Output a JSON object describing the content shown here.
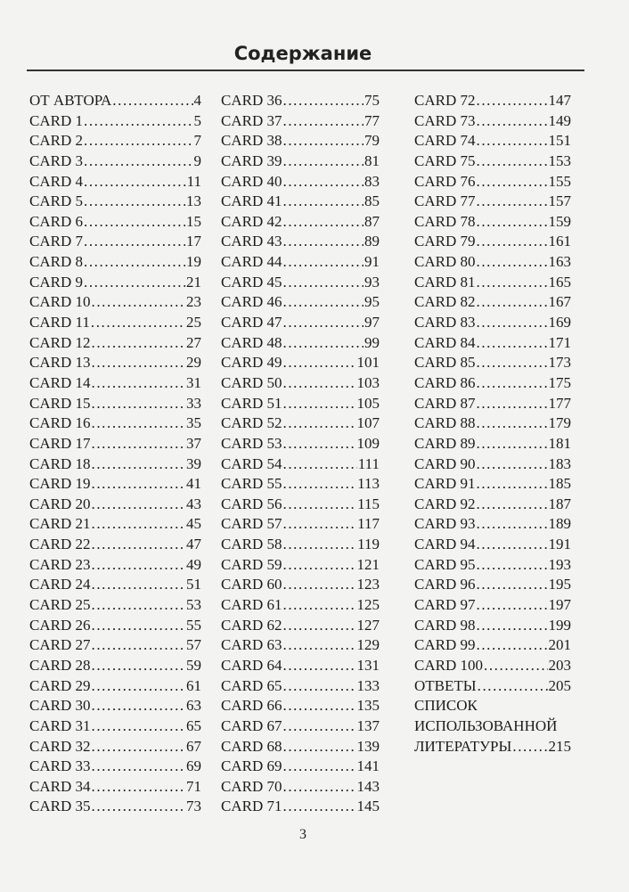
{
  "title": "Содержание",
  "page_number": "3",
  "columns": [
    [
      {
        "label": "ОТ АВТОРА",
        "page": "4"
      },
      {
        "label": "CARD 1",
        "page": "5"
      },
      {
        "label": "CARD 2",
        "page": "7"
      },
      {
        "label": "CARD 3",
        "page": "9"
      },
      {
        "label": "CARD 4",
        "page": "11"
      },
      {
        "label": "CARD 5",
        "page": "13"
      },
      {
        "label": "CARD 6",
        "page": "15"
      },
      {
        "label": "CARD 7",
        "page": "17"
      },
      {
        "label": "CARD 8",
        "page": "19"
      },
      {
        "label": "CARD 9",
        "page": "21"
      },
      {
        "label": "CARD 10",
        "page": "23"
      },
      {
        "label": "CARD 11",
        "page": "25"
      },
      {
        "label": "CARD 12",
        "page": "27"
      },
      {
        "label": "CARD 13",
        "page": "29"
      },
      {
        "label": "CARD 14",
        "page": "31"
      },
      {
        "label": "CARD 15",
        "page": "33"
      },
      {
        "label": "CARD 16",
        "page": "35"
      },
      {
        "label": "CARD 17",
        "page": "37"
      },
      {
        "label": "CARD 18",
        "page": "39"
      },
      {
        "label": "CARD 19",
        "page": "41"
      },
      {
        "label": "CARD 20",
        "page": "43"
      },
      {
        "label": "CARD 21",
        "page": "45"
      },
      {
        "label": "CARD 22",
        "page": "47"
      },
      {
        "label": "CARD 23",
        "page": "49"
      },
      {
        "label": "CARD 24",
        "page": "51"
      },
      {
        "label": "CARD 25",
        "page": "53"
      },
      {
        "label": "CARD 26",
        "page": "55"
      },
      {
        "label": "CARD 27",
        "page": "57"
      },
      {
        "label": "CARD 28",
        "page": "59"
      },
      {
        "label": "CARD 29",
        "page": "61"
      },
      {
        "label": "CARD 30",
        "page": "63"
      },
      {
        "label": "CARD 31",
        "page": "65"
      },
      {
        "label": "CARD 32",
        "page": "67"
      },
      {
        "label": "CARD 33",
        "page": "69"
      },
      {
        "label": "CARD 34",
        "page": "71"
      },
      {
        "label": "CARD 35",
        "page": "73"
      }
    ],
    [
      {
        "label": "CARD 36",
        "page": "75"
      },
      {
        "label": "CARD 37",
        "page": "77"
      },
      {
        "label": "CARD 38",
        "page": "79"
      },
      {
        "label": "CARD 39",
        "page": "81"
      },
      {
        "label": "CARD 40",
        "page": "83"
      },
      {
        "label": "CARD 41",
        "page": "85"
      },
      {
        "label": "CARD 42",
        "page": "87"
      },
      {
        "label": "CARD 43",
        "page": "89"
      },
      {
        "label": "CARD 44",
        "page": "91"
      },
      {
        "label": "CARD 45",
        "page": "93"
      },
      {
        "label": "CARD 46",
        "page": "95"
      },
      {
        "label": "CARD 47",
        "page": "97"
      },
      {
        "label": "CARD 48",
        "page": "99"
      },
      {
        "label": "CARD 49",
        "page": "101"
      },
      {
        "label": "CARD 50",
        "page": "103"
      },
      {
        "label": "CARD 51",
        "page": "105"
      },
      {
        "label": "CARD 52",
        "page": "107"
      },
      {
        "label": "CARD 53",
        "page": "109"
      },
      {
        "label": "CARD 54",
        "page": "111"
      },
      {
        "label": "CARD 55",
        "page": "113"
      },
      {
        "label": "CARD 56",
        "page": "115"
      },
      {
        "label": "CARD 57",
        "page": "117"
      },
      {
        "label": "CARD 58",
        "page": "119"
      },
      {
        "label": "CARD 59",
        "page": "121"
      },
      {
        "label": "CARD 60",
        "page": "123"
      },
      {
        "label": "CARD 61",
        "page": "125"
      },
      {
        "label": "CARD 62",
        "page": "127"
      },
      {
        "label": "CARD 63",
        "page": "129"
      },
      {
        "label": "CARD 64",
        "page": "131"
      },
      {
        "label": "CARD 65",
        "page": "133"
      },
      {
        "label": "CARD 66",
        "page": "135"
      },
      {
        "label": "CARD 67",
        "page": "137"
      },
      {
        "label": "CARD 68",
        "page": "139"
      },
      {
        "label": "CARD 69",
        "page": "141"
      },
      {
        "label": "CARD 70",
        "page": "143"
      },
      {
        "label": "CARD 71",
        "page": "145"
      }
    ],
    [
      {
        "label": "CARD 72",
        "page": "147"
      },
      {
        "label": "CARD 73",
        "page": "149"
      },
      {
        "label": "CARD 74",
        "page": "151"
      },
      {
        "label": "CARD 75",
        "page": "153"
      },
      {
        "label": "CARD 76",
        "page": "155"
      },
      {
        "label": "CARD 77",
        "page": "157"
      },
      {
        "label": "CARD 78",
        "page": "159"
      },
      {
        "label": "CARD 79",
        "page": "161"
      },
      {
        "label": "CARD 80",
        "page": "163"
      },
      {
        "label": "CARD 81",
        "page": "165"
      },
      {
        "label": "CARD 82",
        "page": "167"
      },
      {
        "label": "CARD 83",
        "page": "169"
      },
      {
        "label": "CARD 84",
        "page": "171"
      },
      {
        "label": "CARD 85",
        "page": "173"
      },
      {
        "label": "CARD 86",
        "page": "175"
      },
      {
        "label": "CARD 87",
        "page": "177"
      },
      {
        "label": "CARD 88",
        "page": "179"
      },
      {
        "label": "CARD 89",
        "page": "181"
      },
      {
        "label": "CARD 90",
        "page": "183"
      },
      {
        "label": "CARD 91",
        "page": "185"
      },
      {
        "label": "CARD 92",
        "page": "187"
      },
      {
        "label": "CARD 93",
        "page": "189"
      },
      {
        "label": "CARD 94",
        "page": "191"
      },
      {
        "label": "CARD 95",
        "page": "193"
      },
      {
        "label": "CARD 96",
        "page": "195"
      },
      {
        "label": "CARD 97",
        "page": "197"
      },
      {
        "label": "CARD 98",
        "page": "199"
      },
      {
        "label": "CARD 99",
        "page": "201"
      },
      {
        "label": "CARD 100",
        "page": "203"
      },
      {
        "label": "ОТВЕТЫ",
        "page": "205"
      }
    ]
  ],
  "bibliography": {
    "lines": [
      "СПИСОК",
      "ИСПОЛЬЗОВАННОЙ"
    ],
    "last_line": "ЛИТЕРАТУРЫ",
    "page": "215"
  }
}
